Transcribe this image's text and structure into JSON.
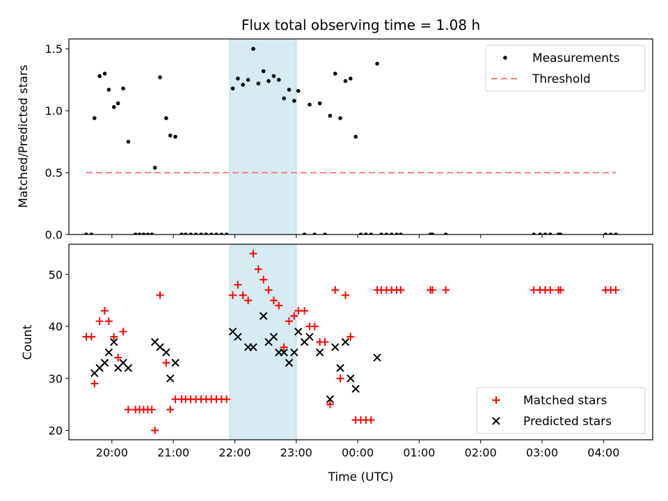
{
  "chart_data": [
    {
      "type": "scatter",
      "title": "Flux total observing time = 1.08 h",
      "xlabel": "",
      "ylabel": "Matched/Predicted stars",
      "x_domain_hours": [
        19.3,
        28.8
      ],
      "ylim": [
        0,
        1.58
      ],
      "y_ticks": [
        0.0,
        0.5,
        1.0,
        1.5
      ],
      "y_tick_labels": [
        "0.0",
        "0.5",
        "1.0",
        "1.5"
      ],
      "highlight_span": {
        "start": "21:55",
        "end": "23:00",
        "color": "#add8e6"
      },
      "legend": {
        "placement": "top-right"
      },
      "series": [
        {
          "name": "Measurements",
          "marker": "dot",
          "color": "#000000",
          "points": [
            [
              "19:35",
              0.0
            ],
            [
              "19:40",
              0.0
            ],
            [
              "19:43",
              0.94
            ],
            [
              "19:48",
              1.28
            ],
            [
              "19:53",
              1.3
            ],
            [
              "19:57",
              1.17
            ],
            [
              "20:02",
              1.03
            ],
            [
              "20:06",
              1.06
            ],
            [
              "20:11",
              1.18
            ],
            [
              "20:16",
              0.75
            ],
            [
              "20:23",
              0.0
            ],
            [
              "20:27",
              0.0
            ],
            [
              "20:31",
              0.0
            ],
            [
              "20:35",
              0.0
            ],
            [
              "20:39",
              0.0
            ],
            [
              "20:42",
              0.54
            ],
            [
              "20:47",
              1.27
            ],
            [
              "20:53",
              0.94
            ],
            [
              "20:57",
              0.8
            ],
            [
              "21:02",
              0.79
            ],
            [
              "21:08",
              0.0
            ],
            [
              "21:12",
              0.0
            ],
            [
              "21:17",
              0.0
            ],
            [
              "21:22",
              0.0
            ],
            [
              "21:27",
              0.0
            ],
            [
              "21:32",
              0.0
            ],
            [
              "21:37",
              0.0
            ],
            [
              "21:42",
              0.0
            ],
            [
              "21:47",
              0.0
            ],
            [
              "21:52",
              0.0
            ],
            [
              "21:58",
              1.18
            ],
            [
              "22:03",
              1.26
            ],
            [
              "22:08",
              1.21
            ],
            [
              "22:13",
              1.25
            ],
            [
              "22:18",
              1.5
            ],
            [
              "22:23",
              1.22
            ],
            [
              "22:28",
              1.32
            ],
            [
              "22:33",
              1.24
            ],
            [
              "22:38",
              1.28
            ],
            [
              "22:43",
              1.25
            ],
            [
              "22:48",
              1.1
            ],
            [
              "22:53",
              1.17
            ],
            [
              "22:58",
              1.08
            ],
            [
              "23:02",
              1.16
            ],
            [
              "23:08",
              0.0
            ],
            [
              "23:13",
              1.05
            ],
            [
              "23:18",
              0.0
            ],
            [
              "23:23",
              1.06
            ],
            [
              "23:28",
              0.0
            ],
            [
              "23:33",
              0.96
            ],
            [
              "23:38",
              1.3
            ],
            [
              "23:43",
              0.94
            ],
            [
              "23:48",
              1.24
            ],
            [
              "23:53",
              1.26
            ],
            [
              "23:58",
              0.79
            ],
            [
              "00:03",
              0.0
            ],
            [
              "00:08",
              0.0
            ],
            [
              "00:13",
              0.0
            ],
            [
              "00:19",
              1.38
            ],
            [
              "00:23",
              0.0
            ],
            [
              "00:28",
              0.0
            ],
            [
              "00:33",
              0.0
            ],
            [
              "00:38",
              0.0
            ],
            [
              "00:42",
              0.0
            ],
            [
              "01:11",
              0.0
            ],
            [
              "01:13",
              0.0
            ],
            [
              "01:26",
              0.0
            ],
            [
              "02:52",
              0.0
            ],
            [
              "02:58",
              0.0
            ],
            [
              "03:03",
              0.0
            ],
            [
              "03:08",
              0.0
            ],
            [
              "03:16",
              0.0
            ],
            [
              "03:18",
              0.0
            ],
            [
              "04:02",
              0.0
            ],
            [
              "04:07",
              0.0
            ],
            [
              "04:12",
              0.0
            ]
          ]
        },
        {
          "name": "Threshold",
          "marker": "dashed-line",
          "color": "#ff7f7f",
          "points": [
            [
              "19:35",
              0.5
            ],
            [
              "04:12",
              0.5
            ]
          ]
        }
      ]
    },
    {
      "type": "scatter",
      "title": "",
      "xlabel": "Time (UTC)",
      "ylabel": "Count",
      "x_domain_hours": [
        19.3,
        28.8
      ],
      "ylim": [
        18.2,
        55.8
      ],
      "y_ticks": [
        20,
        30,
        40,
        50
      ],
      "y_tick_labels": [
        "20",
        "30",
        "40",
        "50"
      ],
      "x_ticks": [
        20,
        21,
        22,
        23,
        24,
        25,
        26,
        27,
        28
      ],
      "x_tick_labels": [
        "20:00",
        "21:00",
        "22:00",
        "23:00",
        "00:00",
        "01:00",
        "02:00",
        "03:00",
        "04:00"
      ],
      "highlight_span": {
        "start": "21:55",
        "end": "23:00",
        "color": "#add8e6"
      },
      "legend": {
        "placement": "bottom-right"
      },
      "series": [
        {
          "name": "Matched stars",
          "marker": "plus",
          "color": "#ff0000",
          "points": [
            [
              "19:35",
              38
            ],
            [
              "19:40",
              38
            ],
            [
              "19:43",
              29
            ],
            [
              "19:48",
              41
            ],
            [
              "19:53",
              43
            ],
            [
              "19:57",
              41
            ],
            [
              "20:02",
              38
            ],
            [
              "20:06",
              34
            ],
            [
              "20:11",
              39
            ],
            [
              "20:16",
              24
            ],
            [
              "20:23",
              24
            ],
            [
              "20:27",
              24
            ],
            [
              "20:31",
              24
            ],
            [
              "20:35",
              24
            ],
            [
              "20:39",
              24
            ],
            [
              "20:42",
              20
            ],
            [
              "20:47",
              46
            ],
            [
              "20:53",
              33
            ],
            [
              "20:57",
              24
            ],
            [
              "21:02",
              26
            ],
            [
              "21:08",
              26
            ],
            [
              "21:12",
              26
            ],
            [
              "21:17",
              26
            ],
            [
              "21:22",
              26
            ],
            [
              "21:27",
              26
            ],
            [
              "21:32",
              26
            ],
            [
              "21:37",
              26
            ],
            [
              "21:42",
              26
            ],
            [
              "21:47",
              26
            ],
            [
              "21:52",
              26
            ],
            [
              "21:58",
              46
            ],
            [
              "22:03",
              48
            ],
            [
              "22:08",
              46
            ],
            [
              "22:13",
              45
            ],
            [
              "22:18",
              54
            ],
            [
              "22:23",
              51
            ],
            [
              "22:28",
              49
            ],
            [
              "22:33",
              47
            ],
            [
              "22:38",
              45
            ],
            [
              "22:43",
              44
            ],
            [
              "22:48",
              36
            ],
            [
              "22:53",
              41
            ],
            [
              "22:58",
              42
            ],
            [
              "23:02",
              43
            ],
            [
              "23:08",
              43
            ],
            [
              "23:13",
              40
            ],
            [
              "23:18",
              40
            ],
            [
              "23:23",
              37
            ],
            [
              "23:28",
              37
            ],
            [
              "23:33",
              25
            ],
            [
              "23:38",
              47
            ],
            [
              "23:43",
              30
            ],
            [
              "23:48",
              46
            ],
            [
              "23:53",
              38
            ],
            [
              "23:58",
              22
            ],
            [
              "00:03",
              22
            ],
            [
              "00:08",
              22
            ],
            [
              "00:13",
              22
            ],
            [
              "00:19",
              47
            ],
            [
              "00:23",
              47
            ],
            [
              "00:28",
              47
            ],
            [
              "00:33",
              47
            ],
            [
              "00:38",
              47
            ],
            [
              "00:42",
              47
            ],
            [
              "01:11",
              47
            ],
            [
              "01:13",
              47
            ],
            [
              "01:26",
              47
            ],
            [
              "02:52",
              47
            ],
            [
              "02:58",
              47
            ],
            [
              "03:03",
              47
            ],
            [
              "03:08",
              47
            ],
            [
              "03:16",
              47
            ],
            [
              "03:18",
              47
            ],
            [
              "04:02",
              47
            ],
            [
              "04:07",
              47
            ],
            [
              "04:12",
              47
            ]
          ]
        },
        {
          "name": "Predicted stars",
          "marker": "x",
          "color": "#000000",
          "points": [
            [
              "19:43",
              31
            ],
            [
              "19:48",
              32
            ],
            [
              "19:53",
              33
            ],
            [
              "19:57",
              35
            ],
            [
              "20:02",
              37
            ],
            [
              "20:06",
              32
            ],
            [
              "20:11",
              33
            ],
            [
              "20:16",
              32
            ],
            [
              "20:42",
              37
            ],
            [
              "20:47",
              36
            ],
            [
              "20:53",
              35
            ],
            [
              "20:57",
              30
            ],
            [
              "21:02",
              33
            ],
            [
              "21:58",
              39
            ],
            [
              "22:03",
              38
            ],
            [
              "22:13",
              36
            ],
            [
              "22:18",
              36
            ],
            [
              "22:28",
              42
            ],
            [
              "22:33",
              37
            ],
            [
              "22:38",
              38
            ],
            [
              "22:43",
              35
            ],
            [
              "22:48",
              35
            ],
            [
              "22:53",
              33
            ],
            [
              "22:58",
              35
            ],
            [
              "23:02",
              39
            ],
            [
              "23:08",
              37
            ],
            [
              "23:13",
              38
            ],
            [
              "23:23",
              35
            ],
            [
              "23:33",
              26
            ],
            [
              "23:38",
              36
            ],
            [
              "23:43",
              32
            ],
            [
              "23:48",
              37
            ],
            [
              "23:53",
              30
            ],
            [
              "23:58",
              28
            ],
            [
              "00:19",
              34
            ]
          ]
        }
      ]
    }
  ]
}
